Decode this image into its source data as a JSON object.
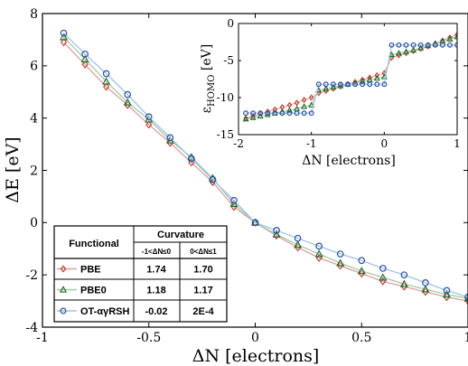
{
  "chart_data": [
    {
      "type": "line",
      "xlabel": "ΔN [electrons]",
      "ylabel": "ΔE [eV]",
      "xlim": [
        -1,
        1
      ],
      "ylim": [
        -4,
        8
      ],
      "x_ticks": [
        "-1",
        "-0.5",
        "0",
        "0.5",
        "1"
      ],
      "y_ticks": [
        "8",
        "6",
        "4",
        "2",
        "0",
        "-2",
        "-4"
      ],
      "grid": false,
      "series": [
        {
          "name": "PBE",
          "marker": "diamond",
          "color": "#c0392b",
          "line_color": "#d9a0a0",
          "x": [
            -0.9,
            -0.8,
            -0.7,
            -0.6,
            -0.5,
            -0.4,
            -0.3,
            -0.2,
            -0.1,
            0,
            0.1,
            0.2,
            0.3,
            0.4,
            0.5,
            0.6,
            0.7,
            0.8,
            0.9,
            1.0
          ],
          "y": [
            6.9,
            6.05,
            5.2,
            4.5,
            3.75,
            3.05,
            2.3,
            1.55,
            0.6,
            0.0,
            -0.5,
            -0.95,
            -1.35,
            -1.65,
            -1.95,
            -2.25,
            -2.45,
            -2.65,
            -2.85,
            -3.0
          ]
        },
        {
          "name": "PBE0",
          "marker": "triangle",
          "color": "#1e6b2d",
          "line_color": "#a5c8a5",
          "x": [
            -0.9,
            -0.8,
            -0.7,
            -0.6,
            -0.5,
            -0.4,
            -0.3,
            -0.2,
            -0.1,
            0,
            0.1,
            0.2,
            0.3,
            0.4,
            0.5,
            0.6,
            0.7,
            0.8,
            0.9,
            1.0
          ],
          "y": [
            7.1,
            6.25,
            5.4,
            4.6,
            3.95,
            3.15,
            2.5,
            1.7,
            0.72,
            0.0,
            -0.45,
            -0.85,
            -1.2,
            -1.55,
            -1.85,
            -2.1,
            -2.35,
            -2.55,
            -2.75,
            -2.9
          ]
        },
        {
          "name": "OT-αγRSH",
          "marker": "circle",
          "color": "#2b4fa3",
          "line_color": "#9fc3e4",
          "x": [
            -0.9,
            -0.8,
            -0.7,
            -0.6,
            -0.5,
            -0.4,
            -0.3,
            -0.2,
            -0.1,
            0,
            0.1,
            0.2,
            0.3,
            0.4,
            0.5,
            0.6,
            0.7,
            0.8,
            0.9,
            1.0
          ],
          "y": [
            7.25,
            6.45,
            5.7,
            4.9,
            4.05,
            3.25,
            2.45,
            1.65,
            0.85,
            0.0,
            -0.3,
            -0.6,
            -0.9,
            -1.2,
            -1.45,
            -1.75,
            -2.0,
            -2.3,
            -2.6,
            -2.85
          ]
        }
      ],
      "table": {
        "col_functional": "Functional",
        "col_curvature": "Curvature",
        "sub1": "-1<ΔN≤0",
        "sub2": "0<ΔN≤1",
        "rows": [
          {
            "name": "PBE",
            "v1": "1.74",
            "v2": "1.70"
          },
          {
            "name": "PBE0",
            "v1": "1.18",
            "v2": "1.17"
          },
          {
            "name": "OT-αγRSH",
            "v1": "-0.02",
            "v2": "2E-4"
          }
        ]
      }
    },
    {
      "type": "line",
      "xlabel": "ΔN [electrons]",
      "ylabel": "εHOMO [eV]",
      "ylabel_main": "ε",
      "ylabel_sub": "HOMO",
      "ylabel_unit": " [eV]",
      "xlim": [
        -2,
        1
      ],
      "ylim": [
        -15,
        0
      ],
      "x_ticks": [
        "-2",
        "-1",
        "0",
        "1"
      ],
      "y_ticks": [
        "0",
        "-5",
        "-10",
        "-15"
      ],
      "grid": false,
      "series": [
        {
          "name": "PBE",
          "marker": "diamond",
          "color": "#c0392b",
          "line_color": "#d9a0a0",
          "x": [
            -1.9,
            -1.8,
            -1.7,
            -1.6,
            -1.5,
            -1.4,
            -1.3,
            -1.2,
            -1.1,
            -1.0,
            -0.9,
            -0.8,
            -0.7,
            -0.6,
            -0.5,
            -0.4,
            -0.3,
            -0.2,
            -0.1,
            0.0,
            0.1,
            0.2,
            0.3,
            0.4,
            0.5,
            0.6,
            0.7,
            0.8,
            0.9,
            1.0
          ],
          "y": [
            -12.8,
            -12.5,
            -12.2,
            -11.9,
            -11.6,
            -11.3,
            -11.0,
            -10.7,
            -10.3,
            -10.0,
            -9.4,
            -9.1,
            -8.8,
            -8.5,
            -8.2,
            -7.9,
            -7.6,
            -7.3,
            -7.0,
            -6.7,
            -4.6,
            -4.3,
            -4.0,
            -3.7,
            -3.4,
            -3.1,
            -2.7,
            -2.3,
            -1.9,
            -1.5
          ]
        },
        {
          "name": "PBE0",
          "marker": "triangle",
          "color": "#1e6b2d",
          "line_color": "#a5c8a5",
          "x": [
            -1.9,
            -1.8,
            -1.7,
            -1.6,
            -1.5,
            -1.4,
            -1.3,
            -1.2,
            -1.1,
            -1.0,
            -0.9,
            -0.8,
            -0.7,
            -0.6,
            -0.5,
            -0.4,
            -0.3,
            -0.2,
            -0.1,
            0.0,
            0.1,
            0.2,
            0.3,
            0.4,
            0.5,
            0.6,
            0.7,
            0.8,
            0.9,
            1.0
          ],
          "y": [
            -12.9,
            -12.7,
            -12.5,
            -12.3,
            -12.1,
            -11.9,
            -11.7,
            -11.5,
            -11.2,
            -11.0,
            -9.0,
            -8.8,
            -8.6,
            -8.4,
            -8.2,
            -8.0,
            -7.8,
            -7.6,
            -7.4,
            -7.2,
            -4.2,
            -4.0,
            -3.8,
            -3.6,
            -3.3,
            -3.0,
            -2.7,
            -2.4,
            -2.1,
            -1.8
          ]
        },
        {
          "name": "OT-αγRSH",
          "marker": "circle",
          "color": "#2b4fa3",
          "line_color": "#9fc3e4",
          "x": [
            -1.9,
            -1.8,
            -1.7,
            -1.6,
            -1.5,
            -1.4,
            -1.3,
            -1.2,
            -1.1,
            -1.0,
            -0.9,
            -0.8,
            -0.7,
            -0.6,
            -0.5,
            -0.4,
            -0.3,
            -0.2,
            -0.1,
            0.0,
            0.1,
            0.2,
            0.3,
            0.4,
            0.5,
            0.6,
            0.7,
            0.8,
            0.9,
            1.0
          ],
          "y": [
            -12.1,
            -12.1,
            -12.1,
            -12.1,
            -12.1,
            -12.1,
            -12.1,
            -12.1,
            -12.1,
            -12.1,
            -8.2,
            -8.2,
            -8.2,
            -8.2,
            -8.2,
            -8.2,
            -8.2,
            -8.2,
            -8.2,
            -8.2,
            -2.9,
            -2.9,
            -2.9,
            -2.9,
            -2.9,
            -2.9,
            -2.9,
            -2.9,
            -2.9,
            -2.9
          ]
        }
      ]
    }
  ]
}
